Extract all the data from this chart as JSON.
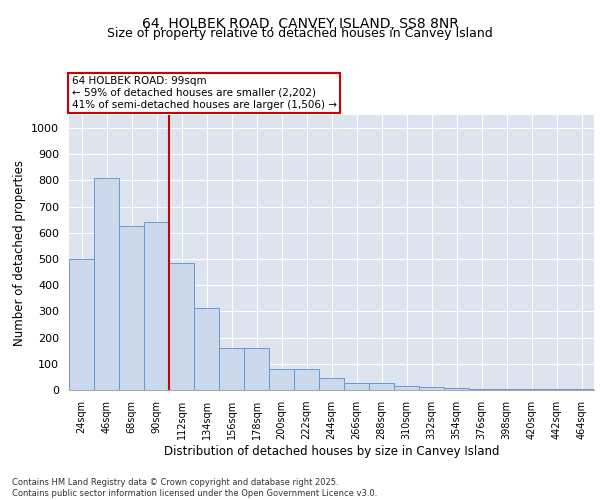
{
  "title1": "64, HOLBEK ROAD, CANVEY ISLAND, SS8 8NR",
  "title2": "Size of property relative to detached houses in Canvey Island",
  "xlabel": "Distribution of detached houses by size in Canvey Island",
  "ylabel": "Number of detached properties",
  "categories": [
    "24sqm",
    "46sqm",
    "68sqm",
    "90sqm",
    "112sqm",
    "134sqm",
    "156sqm",
    "178sqm",
    "200sqm",
    "222sqm",
    "244sqm",
    "266sqm",
    "288sqm",
    "310sqm",
    "332sqm",
    "354sqm",
    "376sqm",
    "398sqm",
    "420sqm",
    "442sqm",
    "464sqm"
  ],
  "values": [
    500,
    810,
    625,
    640,
    485,
    315,
    160,
    160,
    80,
    80,
    45,
    25,
    25,
    15,
    10,
    7,
    5,
    3,
    2,
    2,
    2
  ],
  "bar_color": "#ccd9ed",
  "bar_edge_color": "#6699cc",
  "vline_x": 3.5,
  "vline_color": "#cc0000",
  "annotation_text": "64 HOLBEK ROAD: 99sqm\n← 59% of detached houses are smaller (2,202)\n41% of semi-detached houses are larger (1,506) →",
  "annotation_box_color": "#ffffff",
  "annotation_box_edge": "#cc0000",
  "ylim": [
    0,
    1050
  ],
  "yticks": [
    0,
    100,
    200,
    300,
    400,
    500,
    600,
    700,
    800,
    900,
    1000
  ],
  "bg_color": "#dde4ef",
  "footnote": "Contains HM Land Registry data © Crown copyright and database right 2025.\nContains public sector information licensed under the Open Government Licence v3.0.",
  "title1_fontsize": 10,
  "title2_fontsize": 9,
  "xlabel_fontsize": 8.5,
  "ylabel_fontsize": 8.5
}
